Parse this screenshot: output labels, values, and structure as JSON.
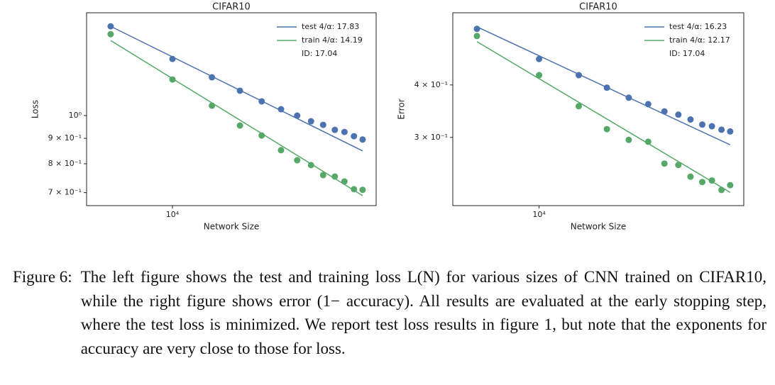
{
  "chart_data": [
    {
      "type": "scatter-fit",
      "title": "CIFAR10",
      "xlabel": "Network Size",
      "ylabel": "Loss",
      "log_x": true,
      "log_y": true,
      "x": [
        5300,
        10000,
        15000,
        20000,
        25000,
        30500,
        36000,
        41500,
        47000,
        53000,
        58500,
        64500,
        70500
      ],
      "xlim": [
        4140,
        81000
      ],
      "xticks": [
        {
          "value": 10000,
          "label": "10⁴"
        }
      ],
      "ylim": [
        0.659,
        1.61
      ],
      "yticks": [
        {
          "value": 1.0,
          "label": "10⁰"
        },
        {
          "value": 0.9,
          "label": "9 × 10⁻¹"
        },
        {
          "value": 0.8,
          "label": "8 × 10⁻¹"
        },
        {
          "value": 0.7,
          "label": "7 × 10⁻¹"
        }
      ],
      "legend": "upper right",
      "annotation": "ID: 17.04",
      "series": [
        {
          "name": "test 4/α: 17.83",
          "color": "#4c72b0",
          "values": [
            1.512,
            1.3,
            1.194,
            1.122,
            1.068,
            1.03,
            1.0,
            0.974,
            0.958,
            0.936,
            0.927,
            0.909,
            0.895
          ],
          "fit": [
            1.512,
            0.849
          ]
        },
        {
          "name": "train 4/α: 14.19",
          "color": "#55a868",
          "values": [
            1.458,
            1.182,
            1.047,
            0.955,
            0.912,
            0.852,
            0.813,
            0.795,
            0.759,
            0.754,
            0.737,
            0.711,
            0.709
          ],
          "fit": [
            1.416,
            0.69
          ]
        }
      ]
    },
    {
      "type": "scatter-fit",
      "title": "CIFAR10",
      "xlabel": "Network Size",
      "ylabel": "Error",
      "log_x": true,
      "log_y": true,
      "x": [
        5300,
        10000,
        15000,
        20000,
        25000,
        30500,
        36000,
        41500,
        47000,
        53000,
        58500,
        64500,
        70500
      ],
      "xlim": [
        4140,
        81000
      ],
      "xticks": [
        {
          "value": 10000,
          "label": "10⁴"
        }
      ],
      "ylim": [
        0.2065,
        0.594
      ],
      "yticks": [
        {
          "value": 0.4,
          "label": "4 × 10⁻¹"
        },
        {
          "value": 0.3,
          "label": "3 × 10⁻¹"
        }
      ],
      "legend": "upper right",
      "annotation": "ID: 17.04",
      "series": [
        {
          "name": "test 4/α: 16.23",
          "color": "#4c72b0",
          "values": [
            0.544,
            0.461,
            0.422,
            0.394,
            0.373,
            0.36,
            0.346,
            0.34,
            0.331,
            0.322,
            0.319,
            0.313,
            0.31
          ],
          "fit": [
            0.55,
            0.288
          ]
        },
        {
          "name": "train 4/α: 12.17",
          "color": "#55a868",
          "values": [
            0.523,
            0.422,
            0.356,
            0.314,
            0.296,
            0.293,
            0.26,
            0.258,
            0.242,
            0.235,
            0.237,
            0.225,
            0.231
          ],
          "fit": [
            0.507,
            0.222
          ]
        }
      ]
    }
  ],
  "caption": {
    "label": "Figure 6:",
    "text": "The left figure shows the test and training loss L(N) for various sizes of CNN trained on CIFAR10, while the right figure shows error (1− accuracy). All results are evaluated at the early stopping step, where the test loss is minimized. We report test loss results in figure 1, but note that the exponents for accuracy are very close to those for loss."
  }
}
